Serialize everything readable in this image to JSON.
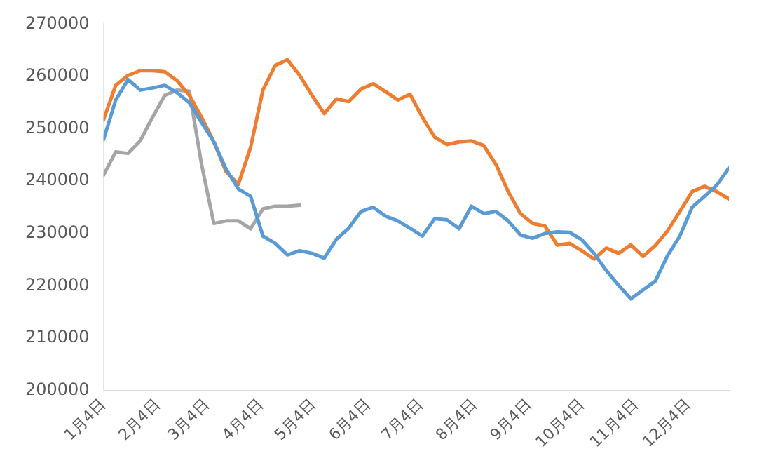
{
  "chart_data": {
    "type": "line",
    "x": [
      "--01-04",
      "--01-11",
      "--01-18",
      "--01-25",
      "--02-01",
      "--02-08",
      "--02-15",
      "--02-22",
      "--03-01",
      "--03-08",
      "--03-15",
      "--03-22",
      "--03-29",
      "--04-05",
      "--04-12",
      "--04-19",
      "--04-26",
      "--05-03",
      "--05-10",
      "--05-17",
      "--05-24",
      "--05-31",
      "--06-07",
      "--06-14",
      "--06-21",
      "--06-28",
      "--07-05",
      "--07-12",
      "--07-19",
      "--07-26",
      "--08-02",
      "--08-09",
      "--08-16",
      "--08-23",
      "--08-30",
      "--09-06",
      "--09-13",
      "--09-20",
      "--09-27",
      "--10-04",
      "--10-11",
      "--10-18",
      "--10-25",
      "--11-01",
      "--11-08",
      "--11-15",
      "--11-22",
      "--11-29",
      "--12-06",
      "--12-13",
      "--12-20",
      "--12-27"
    ],
    "series": [
      {
        "color": "#5b9bd5",
        "values": [
          247900,
          255500,
          259400,
          257400,
          257800,
          258300,
          256900,
          255000,
          251200,
          247500,
          242300,
          238500,
          237100,
          229500,
          228100,
          225900,
          226700,
          226200,
          225300,
          228900,
          231000,
          234200,
          235000,
          233300,
          232400,
          231000,
          229500,
          232800,
          232600,
          230900,
          235200,
          233800,
          234200,
          232400,
          229700,
          229100,
          230000,
          230300,
          230200,
          228800,
          226200,
          222900,
          220100,
          217500,
          219200,
          220900,
          225800,
          229500,
          235000,
          237100,
          239200,
          242500
        ]
      },
      {
        "color": "#ed7d31",
        "values": [
          251700,
          258300,
          260200,
          261100,
          261100,
          260900,
          259200,
          256400,
          252200,
          247500,
          241800,
          239400,
          246500,
          257400,
          262100,
          263200,
          260200,
          256400,
          252900,
          255700,
          255200,
          257600,
          258600,
          257100,
          255500,
          256600,
          252200,
          248400,
          247000,
          247500,
          247700,
          246800,
          243200,
          238000,
          233800,
          231900,
          231400,
          227800,
          228100,
          226700,
          225100,
          227200,
          226200,
          227800,
          225600,
          227700,
          230500,
          234200,
          238000,
          239000,
          238000,
          236600
        ]
      },
      {
        "color": "#a5a5a5",
        "values": [
          241100,
          245600,
          245300,
          247700,
          252200,
          256400,
          257400,
          257200,
          243200,
          231900,
          232400,
          232400,
          230900,
          234700,
          235200,
          235200,
          235400,
          null,
          null,
          null,
          null,
          null,
          null,
          null,
          null,
          null,
          null,
          null,
          null,
          null,
          null,
          null,
          null,
          null,
          null,
          null,
          null,
          null,
          null,
          null,
          null,
          null,
          null,
          null,
          null,
          null,
          null,
          null,
          null,
          null,
          null,
          null
        ]
      }
    ],
    "xlim": [
      "--01-04",
      "--12-27"
    ],
    "xticks": [
      {
        "value": "--01-04",
        "label": "1月4日"
      },
      {
        "value": "--02-04",
        "label": "2月4日"
      },
      {
        "value": "--03-04",
        "label": "3月4日"
      },
      {
        "value": "--04-04",
        "label": "4月4日"
      },
      {
        "value": "--05-04",
        "label": "5月4日"
      },
      {
        "value": "--06-04",
        "label": "6月4日"
      },
      {
        "value": "--07-04",
        "label": "7月4日"
      },
      {
        "value": "--08-04",
        "label": "8月4日"
      },
      {
        "value": "--09-04",
        "label": "9月4日"
      },
      {
        "value": "--10-04",
        "label": "10月4日"
      },
      {
        "value": "--11-04",
        "label": "11月4日"
      },
      {
        "value": "--12-04",
        "label": "12月4日"
      }
    ],
    "ylim": [
      200000,
      270000
    ],
    "yticks": [
      200000,
      210000,
      220000,
      230000,
      240000,
      250000,
      260000,
      270000
    ],
    "grid": false,
    "legend": false,
    "marker": "none",
    "line_style": "solid"
  }
}
